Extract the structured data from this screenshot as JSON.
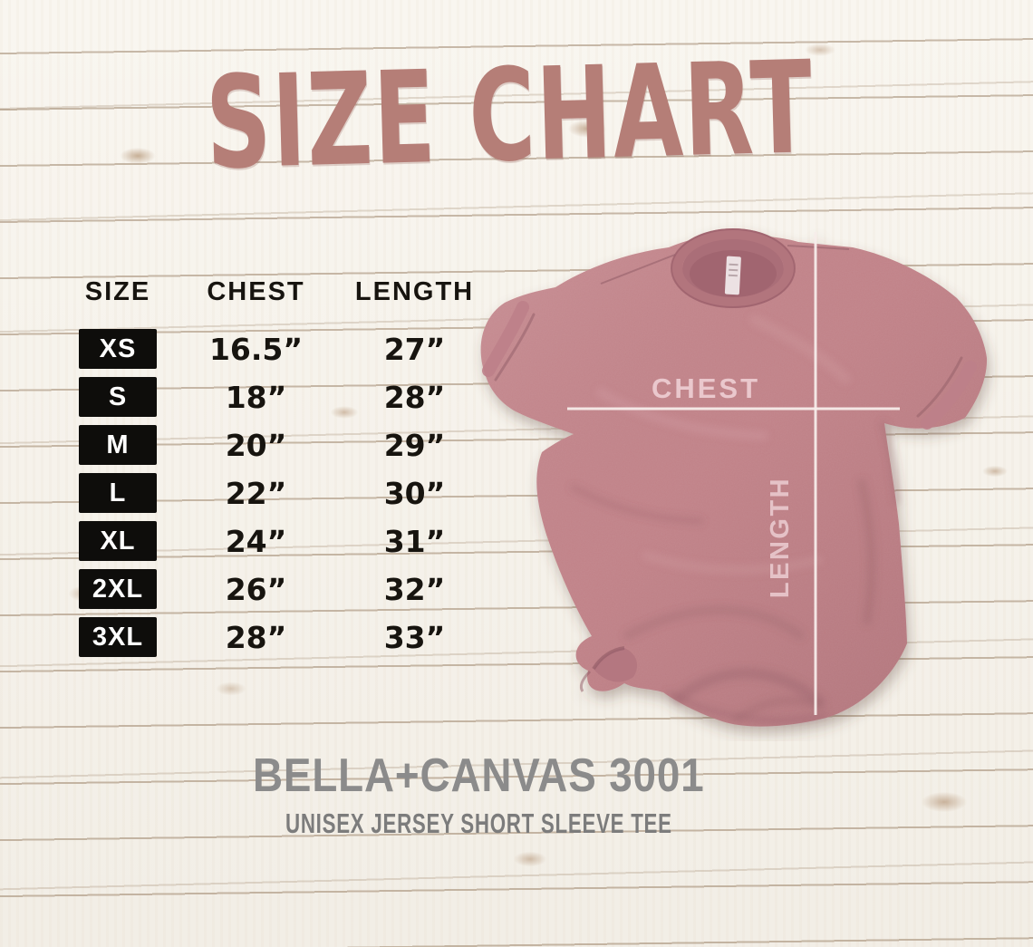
{
  "title": "SIZE CHART",
  "colors": {
    "accent": "#b57e77",
    "shirt": "#c28389",
    "measure_line": "#f7ecea",
    "footer_text": "#8b8b8b",
    "table_text": "#17140f",
    "badge_bg": "#0e0d0b",
    "badge_text": "#ffffff"
  },
  "chart_data": {
    "type": "table",
    "title": "SIZE CHART",
    "columns": [
      "SIZE",
      "CHEST",
      "LENGTH"
    ],
    "rows": [
      [
        "XS",
        "16.5”",
        "27”"
      ],
      [
        "S",
        "18”",
        "28”"
      ],
      [
        "M",
        "20”",
        "29”"
      ],
      [
        "L",
        "22”",
        "30”"
      ],
      [
        "XL",
        "24”",
        "31”"
      ],
      [
        "2XL",
        "26”",
        "32”"
      ],
      [
        "3XL",
        "28”",
        "33”"
      ]
    ]
  },
  "shirt_overlay": {
    "chest_label": "CHEST",
    "length_label": "LENGTH"
  },
  "footer": {
    "brand": "BELLA+CANVAS 3001",
    "subtitle": "UNISEX JERSEY SHORT SLEEVE TEE"
  }
}
